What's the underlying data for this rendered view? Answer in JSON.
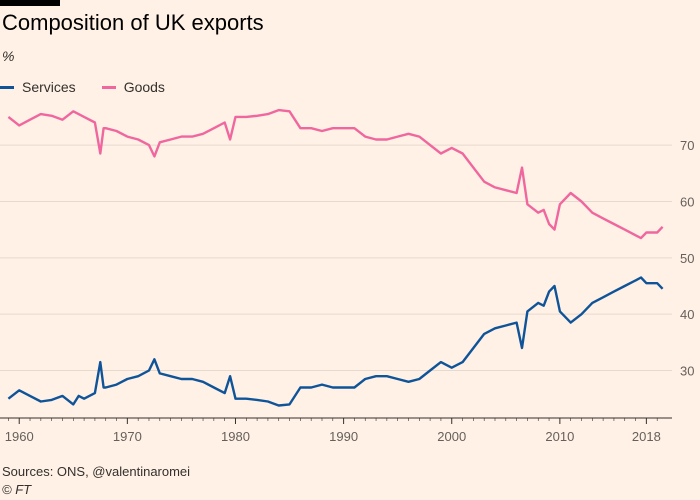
{
  "header": {
    "title": "Composition of UK exports",
    "unit": "%"
  },
  "footer": {
    "source": "Sources: ONS, @valentinaromei",
    "credit": "© FT"
  },
  "chart_data": {
    "type": "line",
    "title": "Composition of UK exports",
    "ylabel": "%",
    "xlim": [
      1958.5,
      2020
    ],
    "ylim": [
      23,
      78
    ],
    "yticks": [
      30,
      40,
      50,
      60,
      70
    ],
    "xticks": [
      1960,
      1970,
      1980,
      1990,
      2000,
      2010,
      2018
    ],
    "grid": true,
    "legend_position": "top-left",
    "series": [
      {
        "name": "Services",
        "color": "#0f5499",
        "x": [
          1959.0,
          1960.0,
          1961.0,
          1962.0,
          1963.0,
          1964.0,
          1965.0,
          1965.5,
          1966.0,
          1967.0,
          1967.5,
          1967.8,
          1968.0,
          1969.0,
          1970.0,
          1971.0,
          1972.0,
          1972.5,
          1973.0,
          1974.0,
          1975.0,
          1976.0,
          1977.0,
          1978.0,
          1979.0,
          1979.5,
          1980.0,
          1981.0,
          1982.0,
          1983.0,
          1984.0,
          1985.0,
          1986.0,
          1987.0,
          1988.0,
          1989.0,
          1990.0,
          1991.0,
          1992.0,
          1993.0,
          1994.0,
          1995.0,
          1996.0,
          1997.0,
          1998.0,
          1999.0,
          2000.0,
          2001.0,
          2002.0,
          2003.0,
          2004.0,
          2005.0,
          2006.0,
          2006.5,
          2007.0,
          2008.0,
          2008.5,
          2009.0,
          2009.5,
          2010.0,
          2011.0,
          2012.0,
          2013.0,
          2014.0,
          2015.0,
          2016.0,
          2017.0,
          2017.5,
          2018.0,
          2019.0,
          2019.5
        ],
        "values": [
          25.0,
          26.5,
          25.5,
          24.5,
          24.8,
          25.5,
          24.0,
          25.5,
          25.0,
          26.0,
          31.5,
          27.0,
          27.0,
          27.5,
          28.5,
          29.0,
          30.0,
          32.0,
          29.5,
          29.0,
          28.5,
          28.5,
          28.0,
          27.0,
          26.0,
          29.0,
          25.0,
          25.0,
          24.8,
          24.5,
          23.8,
          24.0,
          27.0,
          27.0,
          27.5,
          27.0,
          27.0,
          27.0,
          28.5,
          29.0,
          29.0,
          28.5,
          28.0,
          28.5,
          30.0,
          31.5,
          30.5,
          31.5,
          34.0,
          36.5,
          37.5,
          38.0,
          38.5,
          34.0,
          40.5,
          42.0,
          41.5,
          44.0,
          45.0,
          40.5,
          38.5,
          40.0,
          42.0,
          43.0,
          44.0,
          45.0,
          46.0,
          46.5,
          45.5,
          45.5,
          44.5
        ]
      },
      {
        "name": "Goods",
        "color": "#f0679f",
        "x": [
          1959.0,
          1960.0,
          1961.0,
          1962.0,
          1963.0,
          1964.0,
          1965.0,
          1966.0,
          1967.0,
          1967.5,
          1967.8,
          1968.0,
          1969.0,
          1970.0,
          1971.0,
          1972.0,
          1972.5,
          1973.0,
          1974.0,
          1975.0,
          1976.0,
          1977.0,
          1978.0,
          1979.0,
          1979.5,
          1980.0,
          1981.0,
          1982.0,
          1983.0,
          1984.0,
          1985.0,
          1986.0,
          1987.0,
          1988.0,
          1989.0,
          1990.0,
          1991.0,
          1992.0,
          1993.0,
          1994.0,
          1995.0,
          1996.0,
          1997.0,
          1998.0,
          1999.0,
          2000.0,
          2001.0,
          2002.0,
          2003.0,
          2004.0,
          2005.0,
          2006.0,
          2006.5,
          2007.0,
          2008.0,
          2008.5,
          2009.0,
          2009.5,
          2010.0,
          2011.0,
          2012.0,
          2013.0,
          2014.0,
          2015.0,
          2016.0,
          2017.0,
          2017.5,
          2018.0,
          2019.0,
          2019.5
        ],
        "values": [
          75.0,
          73.5,
          74.5,
          75.5,
          75.2,
          74.5,
          76.0,
          75.0,
          74.0,
          68.5,
          73.0,
          73.0,
          72.5,
          71.5,
          71.0,
          70.0,
          68.0,
          70.5,
          71.0,
          71.5,
          71.5,
          72.0,
          73.0,
          74.0,
          71.0,
          75.0,
          75.0,
          75.2,
          75.5,
          76.2,
          76.0,
          73.0,
          73.0,
          72.5,
          73.0,
          73.0,
          73.0,
          71.5,
          71.0,
          71.0,
          71.5,
          72.0,
          71.5,
          70.0,
          68.5,
          69.5,
          68.5,
          66.0,
          63.5,
          62.5,
          62.0,
          61.5,
          66.0,
          59.5,
          58.0,
          58.5,
          56.0,
          55.0,
          59.5,
          61.5,
          60.0,
          58.0,
          57.0,
          56.0,
          55.0,
          54.0,
          53.5,
          54.5,
          54.5,
          55.5
        ]
      }
    ]
  }
}
